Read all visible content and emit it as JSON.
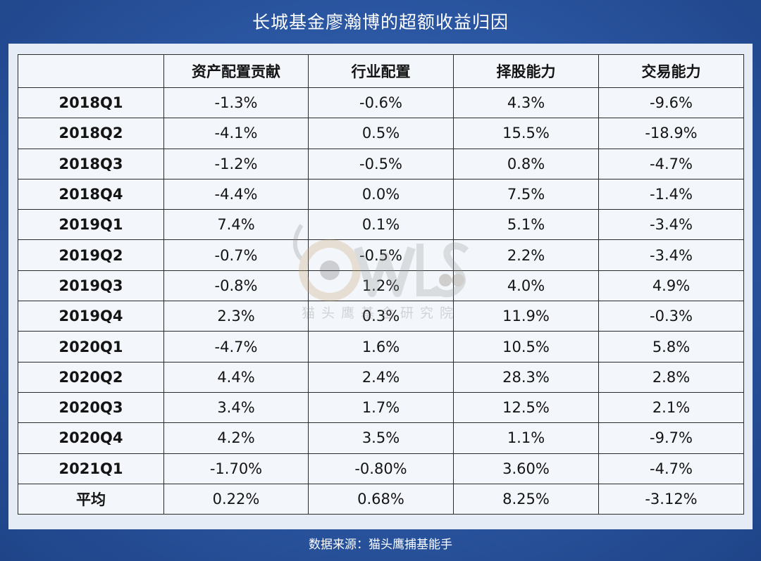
{
  "title": "长城基金廖瀚博的超额收益归因",
  "table": {
    "headers": [
      "",
      "资产配置贡献",
      "行业配置",
      "择股能力",
      "交易能力"
    ],
    "rows": [
      {
        "label": "2018Q1",
        "cells": [
          "-1.3%",
          "-0.6%",
          "4.3%",
          "-9.6%"
        ]
      },
      {
        "label": "2018Q2",
        "cells": [
          "-4.1%",
          "0.5%",
          "15.5%",
          "-18.9%"
        ]
      },
      {
        "label": "2018Q3",
        "cells": [
          "-1.2%",
          "-0.5%",
          "0.8%",
          "-4.7%"
        ]
      },
      {
        "label": "2018Q4",
        "cells": [
          "-4.4%",
          "0.0%",
          "7.5%",
          "-1.4%"
        ]
      },
      {
        "label": "2019Q1",
        "cells": [
          "7.4%",
          "0.1%",
          "5.1%",
          "-3.4%"
        ]
      },
      {
        "label": "2019Q2",
        "cells": [
          "-0.7%",
          "-0.5%",
          "2.2%",
          "-3.4%"
        ]
      },
      {
        "label": "2019Q3",
        "cells": [
          "-0.8%",
          "1.2%",
          "4.0%",
          "4.9%"
        ]
      },
      {
        "label": "2019Q4",
        "cells": [
          "2.3%",
          "0.3%",
          "11.9%",
          "-0.3%"
        ]
      },
      {
        "label": "2020Q1",
        "cells": [
          "-4.7%",
          "1.6%",
          "10.5%",
          "5.8%"
        ]
      },
      {
        "label": "2020Q2",
        "cells": [
          "4.4%",
          "2.4%",
          "28.3%",
          "2.8%"
        ]
      },
      {
        "label": "2020Q3",
        "cells": [
          "3.4%",
          "1.7%",
          "12.5%",
          "2.1%"
        ]
      },
      {
        "label": "2020Q4",
        "cells": [
          "4.2%",
          "3.5%",
          "1.1%",
          "-9.7%"
        ]
      },
      {
        "label": "2021Q1",
        "cells": [
          "-1.70%",
          "-0.80%",
          "3.60%",
          "-4.7%"
        ]
      },
      {
        "label": "平均",
        "cells": [
          "0.22%",
          "0.68%",
          "8.25%",
          "-3.12%"
        ]
      }
    ]
  },
  "watermark": {
    "logo_text": "OWLS",
    "caption": "猫头鹰基金研究院"
  },
  "footer": "数据来源：猫头鹰捕基能手",
  "colors": {
    "background": "#2d5aa6",
    "panel": "#e6ecf6",
    "table_bg": "#f3f6fb",
    "border": "#2a2a2a"
  }
}
